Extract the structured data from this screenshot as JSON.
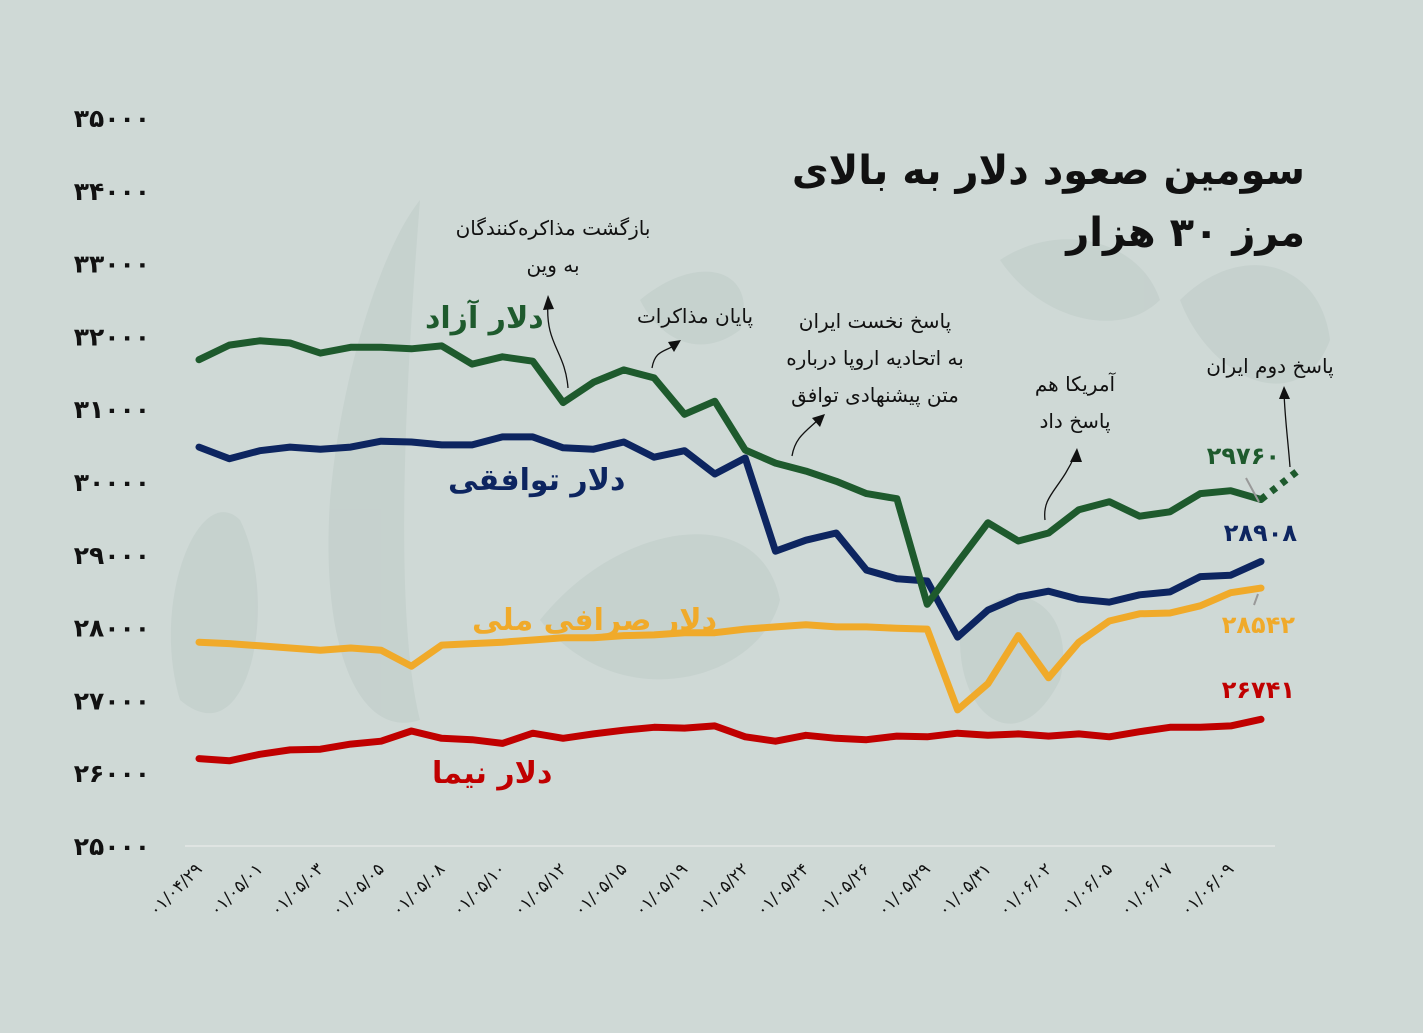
{
  "title": {
    "line1": "سومین صعود دلار به بالای",
    "line2": "مرز ۳۰ هزار"
  },
  "annotations": [
    {
      "lines": [
        "بازگشت مذاکره‌کنندگان",
        "به وین"
      ]
    },
    {
      "lines": [
        "پایان مذاکرات"
      ]
    },
    {
      "lines": [
        "پاسخ نخست ایران",
        "به اتحادیه اروپا درباره",
        "متن پیشنهادی توافق"
      ]
    },
    {
      "lines": [
        "آمریکا هم",
        "پاسخ داد"
      ]
    },
    {
      "lines": [
        "پاسخ دوم ایران"
      ]
    }
  ],
  "chart_data": {
    "type": "line",
    "title": "سومین صعود دلار به بالای مرز ۳۰ هزار",
    "ylim": [
      25000,
      35000
    ],
    "y_ticks": [
      "۲۵۰۰۰",
      "۲۶۰۰۰",
      "۲۷۰۰۰",
      "۲۸۰۰۰",
      "۲۹۰۰۰",
      "۳۰۰۰۰",
      "۳۱۰۰۰",
      "۳۲۰۰۰",
      "۳۳۰۰۰",
      "۳۴۰۰۰",
      "۳۵۰۰۰"
    ],
    "x_tick_labels": [
      "۰۱/۰۴/۲۹",
      "۰۱/۰۵/۰۱",
      "۰۱/۰۵/۰۳",
      "۰۱/۰۵/۰۵",
      "۰۱/۰۵/۰۸",
      "۰۱/۰۵/۱۰",
      "۰۱/۰۵/۱۲",
      "۰۱/۰۵/۱۵",
      "۰۱/۰۵/۱۹",
      "۰۱/۰۵/۲۲",
      "۰۱/۰۵/۲۴",
      "۰۱/۰۵/۲۶",
      "۰۱/۰۵/۲۹",
      "۰۱/۰۵/۳۱",
      "۰۱/۰۶/۰۲",
      "۰۱/۰۶/۰۵",
      "۰۱/۰۶/۰۷",
      "۰۱/۰۶/۰۹"
    ],
    "grid": false,
    "series": [
      {
        "name": "دلار آزاد",
        "color": "#1e5a2d",
        "end_label": "۲۹۷۶۰",
        "dotted_extension": true,
        "values": [
          31680,
          31880,
          31940,
          31910,
          31770,
          31850,
          31850,
          31830,
          31870,
          31620,
          31720,
          31660,
          31090,
          31370,
          31540,
          31430,
          30930,
          31110,
          30440,
          30260,
          30150,
          30010,
          29840,
          29770,
          28320,
          28890,
          29440,
          29190,
          29300,
          29620,
          29730,
          29530,
          29590,
          29840,
          29880,
          29760
        ]
      },
      {
        "name": "دلار توافقی",
        "color": "#0d2560",
        "end_label": "۲۸۹۰۸",
        "values": [
          30480,
          30320,
          30430,
          30480,
          30450,
          30480,
          30560,
          30550,
          30510,
          30510,
          30620,
          30620,
          30470,
          30450,
          30550,
          30340,
          30430,
          30110,
          30330,
          29050,
          29200,
          29300,
          28790,
          28670,
          28640,
          27870,
          28240,
          28420,
          28500,
          28390,
          28350,
          28450,
          28490,
          28700,
          28720,
          28908
        ]
      },
      {
        "name": "دلار صرافی ملی",
        "color": "#f0aa2a",
        "end_label": "۲۸۵۴۲",
        "values": [
          27800,
          27780,
          27750,
          27720,
          27690,
          27720,
          27690,
          27470,
          27760,
          27780,
          27800,
          27830,
          27860,
          27860,
          27890,
          27900,
          27930,
          27930,
          27980,
          28010,
          28040,
          28010,
          28010,
          27990,
          27980,
          26870,
          27230,
          27890,
          27310,
          27800,
          28090,
          28190,
          28200,
          28300,
          28480,
          28542
        ]
      },
      {
        "name": "دلار نیما",
        "color": "#c00000",
        "end_label": "۲۶۷۴۱",
        "values": [
          26200,
          26170,
          26260,
          26320,
          26330,
          26400,
          26440,
          26580,
          26480,
          26460,
          26410,
          26550,
          26480,
          26540,
          26590,
          26630,
          26620,
          26650,
          26500,
          26440,
          26520,
          26480,
          26460,
          26510,
          26500,
          26550,
          26520,
          26540,
          26510,
          26540,
          26500,
          26570,
          26630,
          26630,
          26650,
          26741
        ]
      }
    ]
  }
}
